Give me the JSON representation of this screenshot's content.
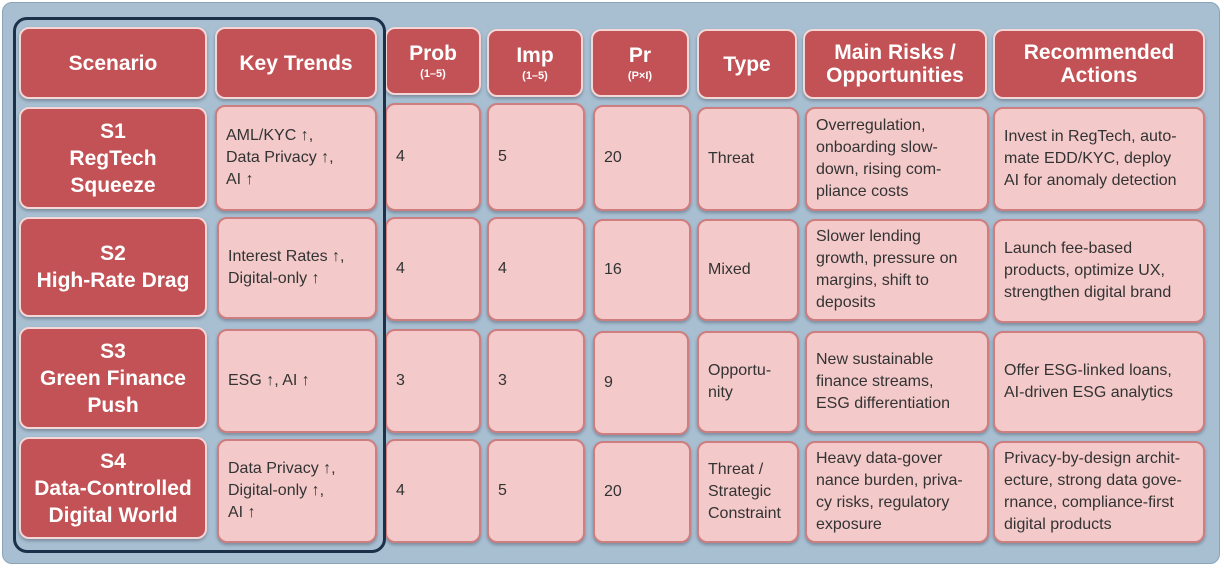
{
  "headers": {
    "scenario": "Scenario",
    "key_trends": "Key Trends",
    "prob": "Prob",
    "prob_sub": "(1–5)",
    "imp": "Imp",
    "imp_sub": "(1–5)",
    "pr": "Pr",
    "pr_sub": "(P×I)",
    "type": "Type",
    "risks": "Main Risks /\nOpportunities",
    "actions": "Recommended\nActions"
  },
  "rows": [
    {
      "scenario": "S1\nRegTech\nSqueeze",
      "trends": "AML/KYC ↑,\nData Privacy ↑,\nAI ↑",
      "prob": "4",
      "imp": "5",
      "pr": "20",
      "type": "Threat",
      "risks": "Overregulation,\nonboarding slow-\ndown, rising com-\npliance costs",
      "actions": "Invest in RegTech, auto-\nmate EDD/KYC, deploy\nAI for anomaly detection"
    },
    {
      "scenario": "S2\nHigh-Rate Drag",
      "trends": "Interest Rates ↑,\nDigital-only ↑",
      "prob": "4",
      "imp": "4",
      "pr": "16",
      "type": "Mixed",
      "risks": "Slower lending\ngrowth, pressure on\nmargins, shift to\ndeposits",
      "actions": "Launch fee-based\nproducts, optimize UX,\nstrengthen digital brand"
    },
    {
      "scenario": "S3\nGreen Finance\nPush",
      "trends": "ESG ↑, AI ↑",
      "prob": "3",
      "imp": "3",
      "pr": "9",
      "type": "Opportu-\nnity",
      "risks": "New sustainable\nfinance streams,\nESG differentiation",
      "actions": "Offer ESG-linked loans,\nAI-driven ESG analytics"
    },
    {
      "scenario": "S4\nData-Controlled\nDigital World",
      "trends": "Data Privacy ↑,\nDigital-only ↑,\nAI ↑",
      "prob": "4",
      "imp": "5",
      "pr": "20",
      "type": "Threat /\nStrategic\nConstraint",
      "risks": "Heavy data-gover\nnance burden, priva-\ncy risks, regulatory\nexposure",
      "actions": "Privacy-by-design archit-\necture, strong data gove-\nrnance, compliance-first\ndigital products"
    }
  ]
}
